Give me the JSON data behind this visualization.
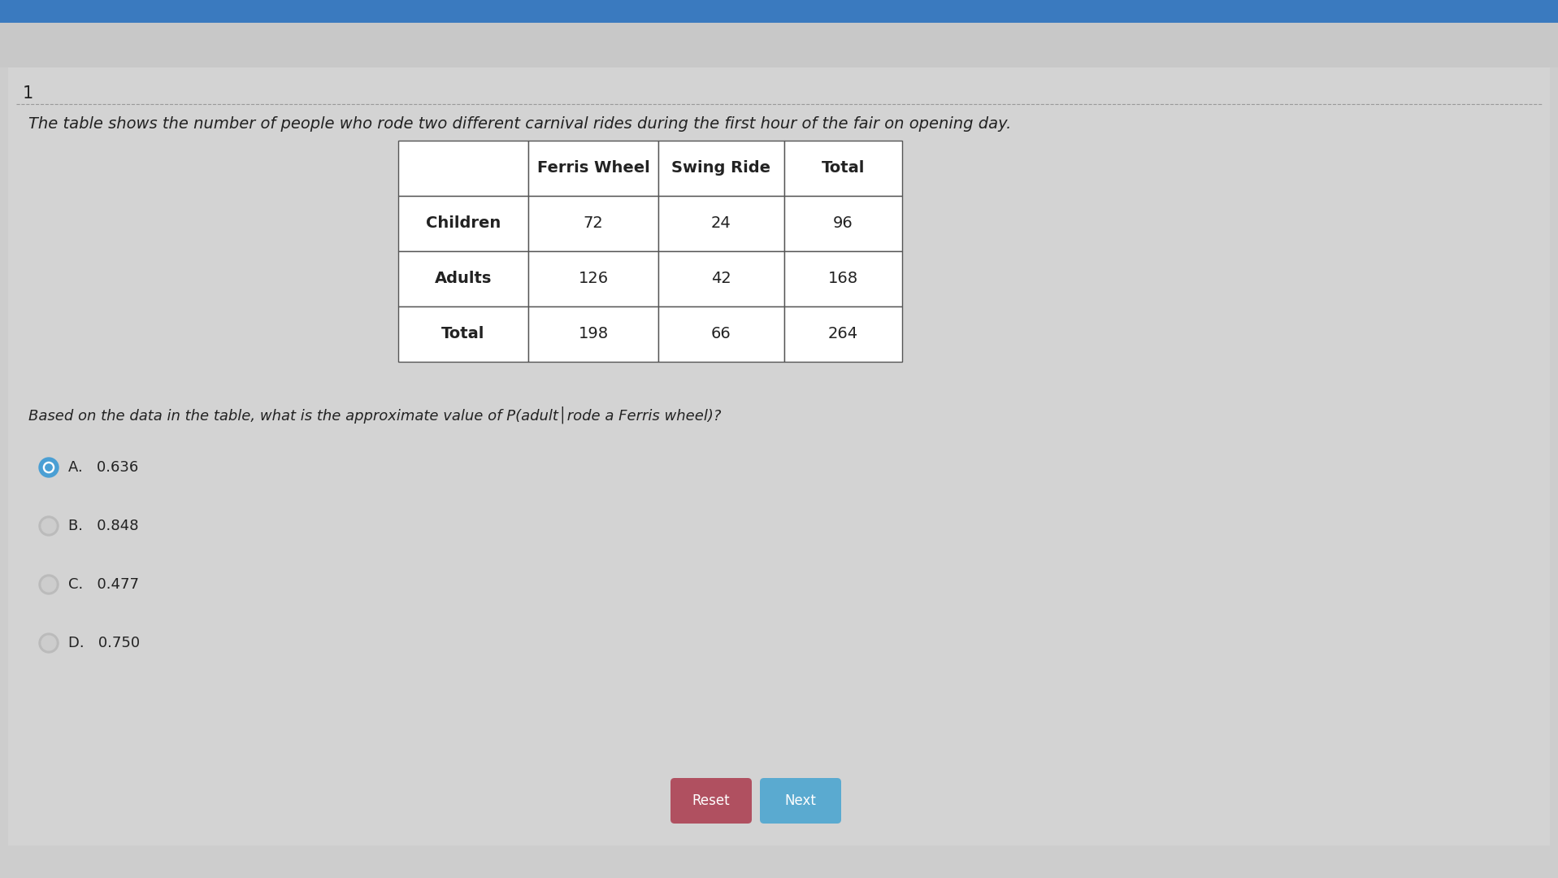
{
  "title_number": "1",
  "description": "The table shows the number of people who rode two different carnival rides during the first hour of the fair on opening day.",
  "table_headers": [
    "",
    "Ferris Wheel",
    "Swing Ride",
    "Total"
  ],
  "table_rows": [
    [
      "Children",
      "72",
      "24",
      "96"
    ],
    [
      "Adults",
      "126",
      "42",
      "168"
    ],
    [
      "Total",
      "198",
      "66",
      "264"
    ]
  ],
  "question": "Based on the data in the table, what is the approximate value of P(adult│rode a Ferris wheel)?",
  "choices": [
    {
      "label": "A.",
      "value": "0.636",
      "selected": true
    },
    {
      "label": "B.",
      "value": "0.848",
      "selected": false
    },
    {
      "label": "C.",
      "value": "0.477",
      "selected": false
    },
    {
      "label": "D.",
      "value": "0.750",
      "selected": false
    }
  ],
  "button_reset": "Reset",
  "button_next": "Next",
  "bg_color": "#cdcdcd",
  "top_browser_color": "#3a7abf",
  "top_bar_color": "#3a7abf",
  "table_bg": "#ffffff",
  "table_border_color": "#555555",
  "selected_radio_color": "#4a9fd4",
  "unselected_radio_color": "#bbbbbb",
  "reset_btn_color": "#b05060",
  "next_btn_color": "#5aaad0",
  "text_color": "#222222",
  "light_text": "#444444",
  "description_fontsize": 14,
  "table_fontsize": 14,
  "question_fontsize": 13,
  "choice_fontsize": 13,
  "number_fontsize": 15
}
